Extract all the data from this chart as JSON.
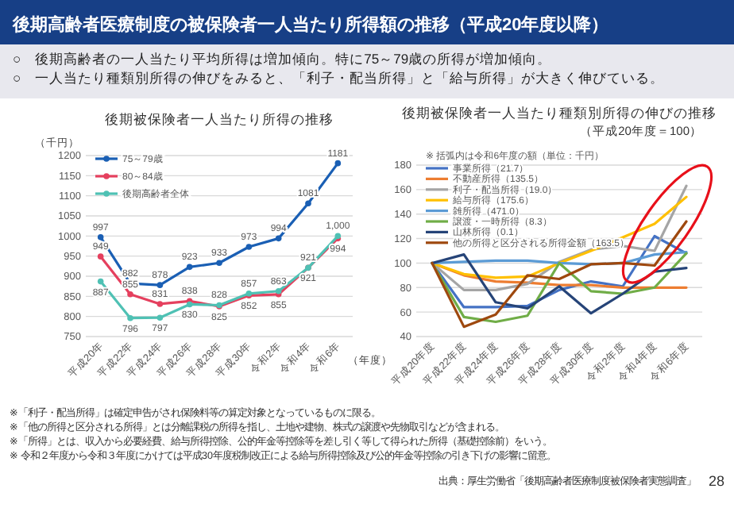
{
  "chart_data": [
    {
      "type": "line",
      "title": "後期被保険者一人当たり所得の推移",
      "ylabel": "（千円）",
      "xlabel": "（年度）",
      "categories": [
        "平成20年",
        "平成22年",
        "平成24年",
        "平成26年",
        "平成28年",
        "平成30年",
        "令和2年",
        "令和4年",
        "令和6年"
      ],
      "ylim": [
        750,
        1200
      ],
      "yticks": [
        750,
        800,
        850,
        900,
        950,
        1000,
        1050,
        1100,
        1150,
        1200
      ],
      "grid": "y",
      "legend": "top left",
      "marker": "circle",
      "series": [
        {
          "name": "75～79歳",
          "color": "#1a5fb4",
          "values": [
            997,
            882,
            878,
            923,
            933,
            973,
            994,
            1081,
            1181
          ],
          "value_labels": [
            "997",
            "882",
            "878",
            "923",
            "933",
            "973",
            "994",
            "1081",
            "1181"
          ]
        },
        {
          "name": "80～84歳",
          "color": "#e5405e",
          "values": [
            949,
            855,
            831,
            838,
            825,
            852,
            855,
            921,
            994
          ],
          "value_labels": [
            "949",
            "855",
            "831",
            "838",
            "825",
            "852",
            "855",
            "921",
            "994"
          ]
        },
        {
          "name": "後期高齢者全体",
          "color": "#4fc1b4",
          "values": [
            887,
            796,
            797,
            830,
            828,
            857,
            863,
            921,
            1000
          ],
          "value_labels": [
            "887",
            "796",
            "797",
            "830",
            "828",
            "857",
            "863",
            "921",
            "1,000"
          ]
        }
      ],
      "annotations": [
        "後期高齢者医療制度の被保険者一人当たり所得額の推移（平成20年度以降）",
        "○　後期高齢者の一人当たり平均所得は増加傾向。特に75～79歳の所得が増加傾向。",
        "○　一人当たり種類別所得の伸びをみると、「利子・配当所得」と「給与所得」が大きく伸びている。"
      ]
    },
    {
      "type": "line",
      "title": "後期被保険者一人当たり種類別所得の伸びの推移",
      "subtitle": "（平成20年度＝100）",
      "legend_title": "※ 括弧内は令和6年度の額（単位：千円）",
      "categories": [
        "平成20年度",
        "平成22年度",
        "平成24年度",
        "平成26年度",
        "平成28年度",
        "平成30年度",
        "令和2年度",
        "令和4年度",
        "令和6年度"
      ],
      "ylim": [
        40,
        180
      ],
      "yticks": [
        40,
        60,
        80,
        100,
        120,
        140,
        160,
        180
      ],
      "grid": "y",
      "legend": "top left",
      "series": [
        {
          "name": "事業所得（21.7）",
          "color": "#4472c4",
          "values": [
            100,
            64,
            64,
            65,
            78,
            85,
            81,
            122,
            108
          ]
        },
        {
          "name": "不動産所得（135.5）",
          "color": "#ed7d31",
          "values": [
            100,
            90,
            85,
            84,
            82,
            82,
            80,
            80,
            80
          ]
        },
        {
          "name": "利子・配当所得（19.0）",
          "color": "#a5a5a5",
          "values": [
            100,
            78,
            78,
            83,
            101,
            111,
            114,
            110,
            163
          ]
        },
        {
          "name": "給与所得（175.6）",
          "color": "#ffc000",
          "values": [
            100,
            91,
            88,
            89,
            100,
            110,
            121,
            132,
            154
          ]
        },
        {
          "name": "雑所得（471.0）",
          "color": "#5b9bd5",
          "values": [
            100,
            101,
            102,
            102,
            100,
            99,
            100,
            107,
            109
          ]
        },
        {
          "name": "譲渡・一時所得（8.3）",
          "color": "#70ad47",
          "values": [
            100,
            56,
            52,
            57,
            100,
            77,
            75,
            80,
            108
          ]
        },
        {
          "name": "山林所得（0.1）",
          "color": "#264478",
          "values": [
            100,
            107,
            68,
            63,
            81,
            59,
            75,
            93,
            96
          ]
        },
        {
          "name": "他の所得と区分される所得金額（163.5）",
          "color": "#9e480e",
          "values": [
            100,
            48,
            58,
            90,
            87,
            99,
            100,
            98,
            134
          ]
        }
      ],
      "annotations": [
        "※「利子・配当所得」は確定申告がされ保険料等の算定対象となっているものに限る。",
        "※「他の所得と区分される所得」とは分離課税の所得を指し、土地や建物、株式の譲渡や先物取引などが含まれる。",
        "※「所得」とは、収入から必要経費、給与所得控除、公的年金等控除等を差し引く等して得られた所得（基礎控除前）をいう。",
        "※ 令和２年度から令和３年度にかけては平成30年度税制改正による給与所得控除及び公的年金等控除の引き下げの影響に留意。",
        "出典：厚生労働省「後期高齢者医療制度被保険者実態調査」",
        "28"
      ]
    }
  ]
}
